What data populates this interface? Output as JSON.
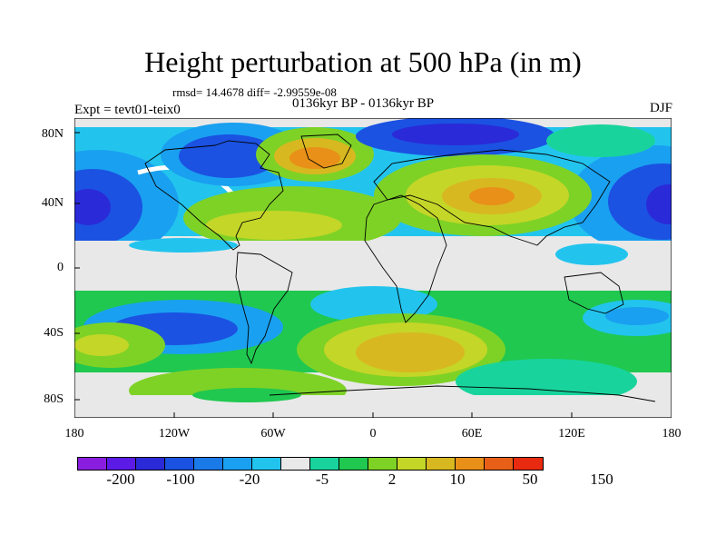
{
  "figure": {
    "title": "Height perturbation at 500 hPa (in m)",
    "stats": "rmsd= 14.4678 diff= -2.99559e-08",
    "period": "0136kyr BP - 0136kyr BP",
    "experiment": "Expt = tevt01-teix0",
    "season": "DJF"
  },
  "map": {
    "projection": "cylindrical equidistant",
    "lat_ticks": [
      "80N",
      "40N",
      "0",
      "40S",
      "80S"
    ],
    "lon_ticks": [
      "180",
      "120W",
      "60W",
      "0",
      "60E",
      "120E",
      "180"
    ],
    "extent": {
      "lon": [
        -180,
        180
      ],
      "lat": [
        -90,
        90
      ]
    },
    "shading_bands": [
      {
        "label": "negative anomaly centre",
        "lon": -165,
        "lat": 40,
        "value": -100
      },
      {
        "label": "negative anomaly centre",
        "lon": 160,
        "lat": 40,
        "value": -100
      },
      {
        "label": "negative anomaly centre",
        "lon": -80,
        "lat": 65,
        "value": -100
      },
      {
        "label": "negative anomaly centre",
        "lon": 10,
        "lat": 72,
        "value": -20
      },
      {
        "label": "positive anomaly centre",
        "lon": -40,
        "lat": 70,
        "value": 50
      },
      {
        "label": "positive anomaly centre",
        "lon": 60,
        "lat": 45,
        "value": 50
      },
      {
        "label": "positive anomaly centre",
        "lon": 30,
        "lat": -55,
        "value": 50
      },
      {
        "label": "positive anomaly centre",
        "lon": -150,
        "lat": -55,
        "value": 10
      },
      {
        "label": "negative anomaly centre",
        "lon": -100,
        "lat": -35,
        "value": -20
      },
      {
        "label": "negative anomaly centre",
        "lon": 120,
        "lat": -45,
        "value": -5
      }
    ]
  },
  "colorbar": {
    "labels": [
      "-200",
      "-100",
      "-20",
      "-5",
      "2",
      "10",
      "50",
      "150"
    ],
    "colors": [
      "#8a1ee0",
      "#5b1ae6",
      "#2a2ad8",
      "#1b52e2",
      "#1a7ae8",
      "#1aa0f0",
      "#22c4ee",
      "#e8e8e8",
      "#18d49c",
      "#20c850",
      "#7ed226",
      "#c4d628",
      "#d8b820",
      "#e89018",
      "#e86018",
      "#e82a10"
    ]
  }
}
